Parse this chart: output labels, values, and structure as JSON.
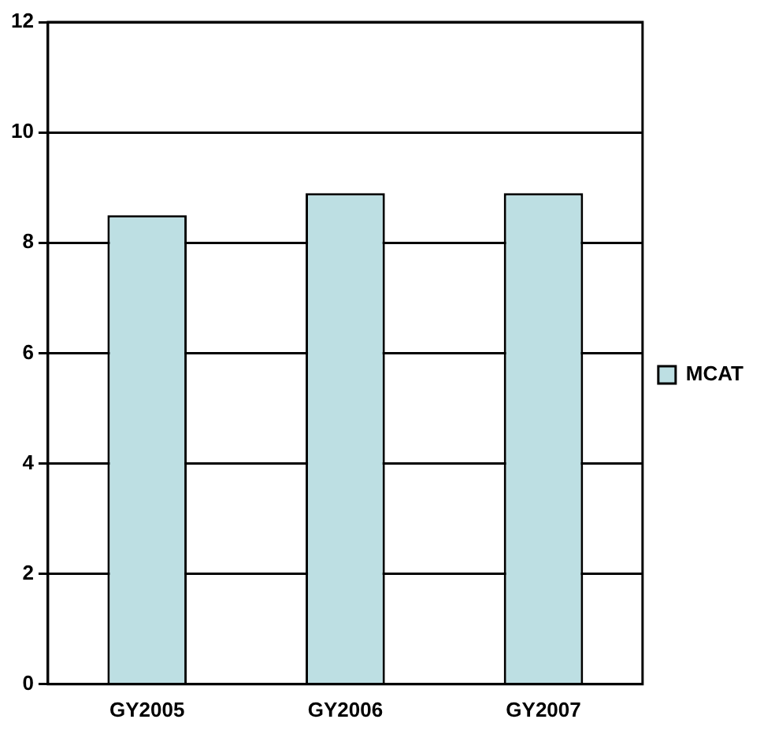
{
  "chart_data": {
    "type": "bar",
    "categories": [
      "GY2005",
      "GY2006",
      "GY2007"
    ],
    "series": [
      {
        "name": "MCAT",
        "color": "#bddfe3",
        "values": [
          8.5,
          8.9,
          8.9
        ]
      }
    ],
    "ylim": [
      0,
      12
    ],
    "yticks": [
      0,
      2,
      4,
      6,
      8,
      10,
      12
    ],
    "grid": "y",
    "legend": "right"
  }
}
